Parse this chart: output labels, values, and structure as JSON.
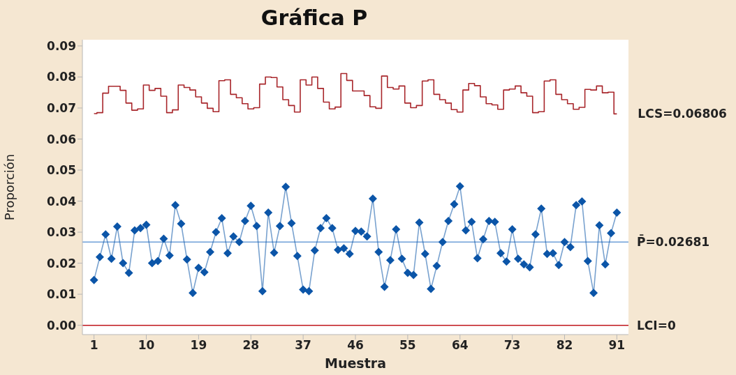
{
  "chart_data": {
    "type": "line",
    "title": "Gráfica P",
    "xlabel": "Muestra",
    "ylabel": "Proporción",
    "x": [
      1,
      2,
      3,
      4,
      5,
      6,
      7,
      8,
      9,
      10,
      11,
      12,
      13,
      14,
      15,
      16,
      17,
      18,
      19,
      20,
      21,
      22,
      23,
      24,
      25,
      26,
      27,
      28,
      29,
      30,
      31,
      32,
      33,
      34,
      35,
      36,
      37,
      38,
      39,
      40,
      41,
      42,
      43,
      44,
      45,
      46,
      47,
      48,
      49,
      50,
      51,
      52,
      53,
      54,
      55,
      56,
      57,
      58,
      59,
      60,
      61,
      62,
      63,
      64,
      65,
      66,
      67,
      68,
      69,
      70,
      71,
      72,
      73,
      74,
      75,
      76,
      77,
      78,
      79,
      80,
      81,
      82,
      83,
      84,
      85,
      86,
      87,
      88,
      89,
      90,
      91
    ],
    "series": [
      {
        "type": "step",
        "name": "LCS=0.06806",
        "color": "#a8262b",
        "marker": "none",
        "values": [
          0.0682,
          0.0685,
          0.0748,
          0.077,
          0.077,
          0.0757,
          0.0716,
          0.0693,
          0.0697,
          0.0774,
          0.0757,
          0.0763,
          0.0738,
          0.0685,
          0.0694,
          0.0774,
          0.0766,
          0.0758,
          0.0736,
          0.0716,
          0.0699,
          0.0688,
          0.0788,
          0.0791,
          0.0744,
          0.0733,
          0.0714,
          0.0697,
          0.0701,
          0.0777,
          0.08,
          0.0798,
          0.0768,
          0.0727,
          0.0708,
          0.0687,
          0.0791,
          0.0774,
          0.08,
          0.0763,
          0.0719,
          0.0697,
          0.0703,
          0.0811,
          0.0789,
          0.0755,
          0.0755,
          0.074,
          0.0704,
          0.0699,
          0.0803,
          0.0766,
          0.0761,
          0.0771,
          0.0716,
          0.0701,
          0.0708,
          0.0787,
          0.0791,
          0.0744,
          0.0727,
          0.0716,
          0.0695,
          0.0687,
          0.0758,
          0.0779,
          0.0772,
          0.0736,
          0.0714,
          0.071,
          0.0696,
          0.0758,
          0.0761,
          0.0771,
          0.0749,
          0.0738,
          0.0685,
          0.0688,
          0.0787,
          0.0791,
          0.0744,
          0.0727,
          0.0714,
          0.0696,
          0.0702,
          0.076,
          0.0758,
          0.0771,
          0.0749,
          0.0751,
          0.0681
        ]
      },
      {
        "color": "#0b55a8",
        "values": [
          0.0146,
          0.022,
          0.0293,
          0.0214,
          0.0318,
          0.02,
          0.0169,
          0.0306,
          0.0313,
          0.0324,
          0.02,
          0.0207,
          0.0279,
          0.0225,
          0.0387,
          0.0327,
          0.0212,
          0.0104,
          0.0185,
          0.0171,
          0.0236,
          0.03,
          0.0345,
          0.0232,
          0.0286,
          0.0268,
          0.0336,
          0.0385,
          0.032,
          0.011,
          0.0363,
          0.0234,
          0.032,
          0.0446,
          0.0329,
          0.0223,
          0.0115,
          0.011,
          0.0241,
          0.0313,
          0.0345,
          0.0313,
          0.0243,
          0.0248,
          0.023,
          0.0304,
          0.0302,
          0.0286,
          0.0408,
          0.0236,
          0.0124,
          0.021,
          0.0309,
          0.0214,
          0.0169,
          0.0162,
          0.0331,
          0.023,
          0.0117,
          0.0191,
          0.0268,
          0.0336,
          0.039,
          0.0448,
          0.0306,
          0.0333,
          0.0216,
          0.0277,
          0.0336,
          0.0333,
          0.0232,
          0.0205,
          0.0309,
          0.0214,
          0.0196,
          0.0187,
          0.0293,
          0.0376,
          0.023,
          0.0232,
          0.0194,
          0.0268,
          0.0252,
          0.0387,
          0.0399,
          0.0207,
          0.0104,
          0.0322,
          0.0196,
          0.0297,
          0.0363
        ]
      }
    ],
    "ref_lines": [
      {
        "axis": "y",
        "value": 0.02681,
        "label": "P̄=0.02681",
        "color": "#6f9fd8"
      },
      {
        "axis": "y",
        "value": 0,
        "label": "LCI=0",
        "color": "#c0171d"
      }
    ],
    "xlim": [
      -1,
      93
    ],
    "xticks": [
      1,
      10,
      19,
      28,
      37,
      46,
      55,
      64,
      73,
      82,
      91
    ],
    "ylim": [
      -0.003,
      0.092
    ],
    "yticks": [
      {
        "value": 0,
        "label": "0.00"
      },
      {
        "value": 0.01,
        "label": "0.01"
      },
      {
        "value": 0.02,
        "label": "0.02"
      },
      {
        "value": 0.03,
        "label": "0.03"
      },
      {
        "value": 0.04,
        "label": "0.04"
      },
      {
        "value": 0.05,
        "label": "0.05"
      },
      {
        "value": 0.06,
        "label": "0.06"
      },
      {
        "value": 0.07,
        "label": "0.07"
      },
      {
        "value": 0.08,
        "label": "0.08"
      },
      {
        "value": 0.09,
        "label": "0.09"
      }
    ],
    "marker": "diamond",
    "grid": false,
    "legend": false
  }
}
